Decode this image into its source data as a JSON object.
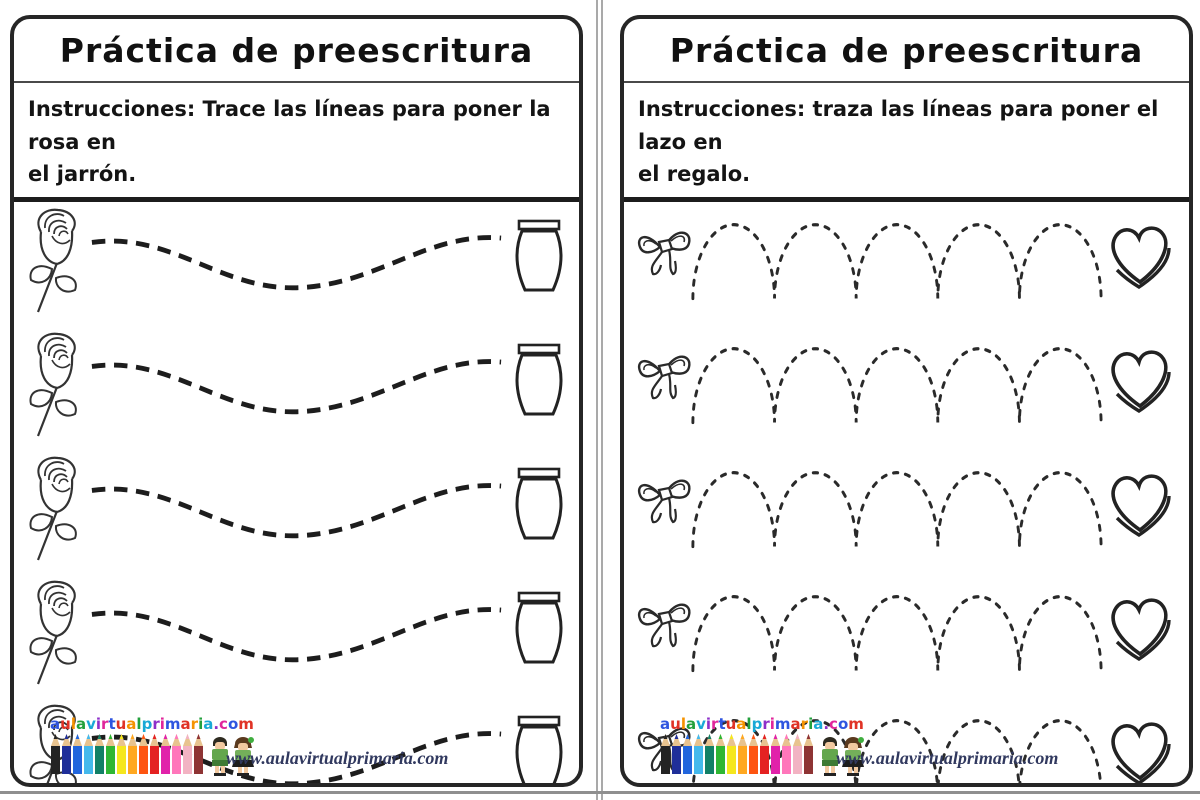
{
  "pages": [
    {
      "title": "Práctica de preescritura",
      "instructions_line1": "Instrucciones: Trace las líneas para poner la rosa en",
      "instructions_line2": "el jarrón.",
      "row_count": 5,
      "left_icon": "rose-icon",
      "right_icon": "vase-icon",
      "path_type": "dashed-wave"
    },
    {
      "title": "Práctica de preescritura",
      "instructions_line1": "Instrucciones: traza las líneas para poner el lazo en",
      "instructions_line2": "el regalo.",
      "row_count": 5,
      "left_icon": "bow-icon",
      "right_icon": "heart-icon",
      "path_type": "dashed-arcs"
    }
  ],
  "footer": {
    "logo_text": "aulavirtualprimaria.com",
    "logo_palette": [
      "#2f55e0",
      "#e03326",
      "#f59300",
      "#23a03d",
      "#19a9d6",
      "#8d2fc9",
      "#e0269b"
    ],
    "pencil_colors": [
      "#232323",
      "#1f2f99",
      "#2266dd",
      "#45b9ec",
      "#128066",
      "#2fb633",
      "#f5e71e",
      "#ffa821",
      "#fe5511",
      "#e42222",
      "#e122aa",
      "#ff77bb",
      "#f2b3c3",
      "#8e3434"
    ],
    "url_text": "www.aulavirtualprimaria.com"
  },
  "colors": {
    "page_border": "#262626",
    "trace_line": "#1d1d1d",
    "divider": "#a9a9a9",
    "url_text_color": "#31395f"
  }
}
